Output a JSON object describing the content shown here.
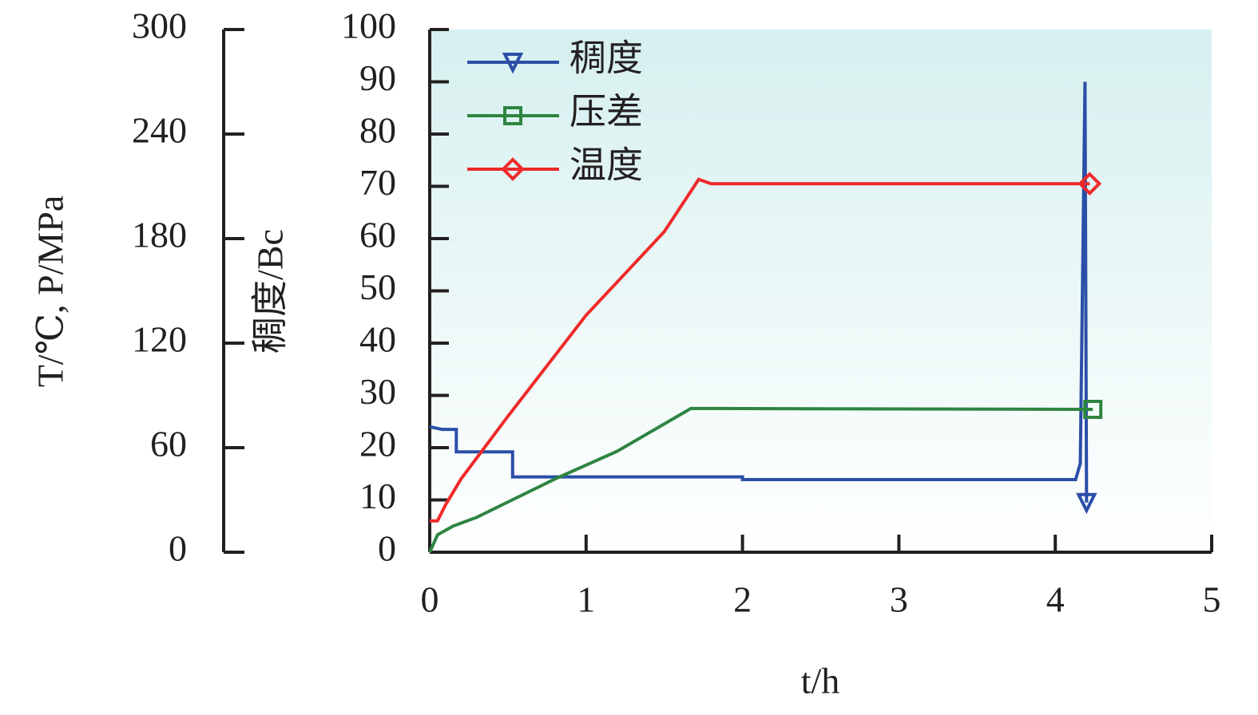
{
  "chart_data": {
    "type": "line",
    "xlabel": "t/h",
    "ylabel": "稠度/Bc",
    "y2label": "T/℃, P/MPa",
    "xlim": [
      0,
      5
    ],
    "xticks": [
      0,
      1,
      2,
      3,
      4,
      5
    ],
    "ylim": [
      0,
      100
    ],
    "yticks": [
      0,
      10,
      20,
      30,
      40,
      50,
      60,
      70,
      80,
      90,
      100
    ],
    "y2lim": [
      0,
      300
    ],
    "y2ticks": [
      0,
      60,
      120,
      180,
      240,
      300
    ],
    "legend": "top-left",
    "series": [
      {
        "name": "稠度",
        "color": "#2b4fa8",
        "marker": "triangle-down",
        "x": [
          0,
          0.08,
          0.17,
          0.17,
          0.53,
          0.53,
          2.0,
          2.0,
          4.13,
          4.16,
          4.19,
          4.2
        ],
        "values": [
          24,
          23.5,
          23.5,
          19.2,
          19.2,
          14.4,
          14.4,
          13.9,
          13.9,
          17,
          90,
          9.5
        ]
      },
      {
        "name": "压差",
        "color": "#2e8540",
        "marker": "square",
        "axis": "y2",
        "x": [
          0,
          0.05,
          0.15,
          0.3,
          0.8,
          1.2,
          1.67,
          4.24
        ],
        "values": [
          0,
          10,
          15,
          20,
          42,
          58,
          82.5,
          82
        ]
      },
      {
        "name": "温度",
        "color": "#ee2a2a",
        "marker": "diamond",
        "axis": "y2",
        "x": [
          0,
          0.05,
          0.1,
          0.2,
          0.5,
          1.0,
          1.5,
          1.72,
          1.8,
          4.22
        ],
        "values": [
          18,
          18,
          27,
          42,
          78,
          136,
          184,
          214,
          211.5,
          211.5
        ]
      }
    ]
  }
}
